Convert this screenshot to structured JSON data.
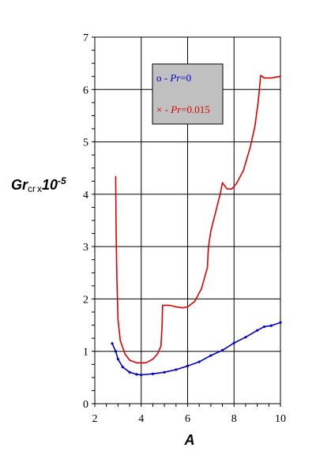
{
  "chart_data": {
    "type": "line",
    "xlabel": "A",
    "ylabel": {
      "main": "Gr",
      "sub": "cr",
      "times": "x",
      "base": "10",
      "exp": "-5"
    },
    "xlim": [
      2,
      10
    ],
    "ylim": [
      0,
      7
    ],
    "xticks": [
      "2",
      "4",
      "6",
      "8",
      "10"
    ],
    "yticks": [
      "0",
      "1",
      "2",
      "3",
      "4",
      "5",
      "6",
      "7"
    ],
    "grid": true,
    "legend": {
      "placement": "top-center",
      "background": "#c0c0c0",
      "entries": [
        {
          "marker": "o",
          "dash": " - ",
          "var": "Pr",
          "val": "=0",
          "color": "#0000cc"
        },
        {
          "marker": "×",
          "dash": " - ",
          "var": "Pr",
          "val": "=0.015",
          "color": "#dd0000"
        }
      ]
    },
    "series": [
      {
        "color": "#0000cc",
        "markers": true,
        "points": [
          [
            2.75,
            1.15
          ],
          [
            2.9,
            1.0
          ],
          [
            3.0,
            0.85
          ],
          [
            3.2,
            0.7
          ],
          [
            3.5,
            0.6
          ],
          [
            3.8,
            0.56
          ],
          [
            4.0,
            0.55
          ],
          [
            4.5,
            0.57
          ],
          [
            5.0,
            0.6
          ],
          [
            5.5,
            0.65
          ],
          [
            6.0,
            0.72
          ],
          [
            6.5,
            0.8
          ],
          [
            7.0,
            0.92
          ],
          [
            7.5,
            1.02
          ],
          [
            8.0,
            1.16
          ],
          [
            8.5,
            1.27
          ],
          [
            9.0,
            1.4
          ],
          [
            9.3,
            1.47
          ],
          [
            9.6,
            1.49
          ],
          [
            10.0,
            1.55
          ]
        ]
      },
      {
        "color": "#dd0000",
        "markers": false,
        "points": [
          [
            2.9,
            4.35
          ],
          [
            2.92,
            3.3
          ],
          [
            2.95,
            2.4
          ],
          [
            3.0,
            1.6
          ],
          [
            3.1,
            1.2
          ],
          [
            3.3,
            0.95
          ],
          [
            3.5,
            0.83
          ],
          [
            3.8,
            0.78
          ],
          [
            4.2,
            0.78
          ],
          [
            4.5,
            0.85
          ],
          [
            4.7,
            0.95
          ],
          [
            4.85,
            1.1
          ],
          [
            4.9,
            1.5
          ],
          [
            4.92,
            1.88
          ],
          [
            5.2,
            1.88
          ],
          [
            5.5,
            1.85
          ],
          [
            5.8,
            1.83
          ],
          [
            6.0,
            1.85
          ],
          [
            6.3,
            1.95
          ],
          [
            6.6,
            2.2
          ],
          [
            6.85,
            2.6
          ],
          [
            6.9,
            3.0
          ],
          [
            7.0,
            3.3
          ],
          [
            7.2,
            3.65
          ],
          [
            7.4,
            4.0
          ],
          [
            7.5,
            4.22
          ],
          [
            7.7,
            4.1
          ],
          [
            7.9,
            4.1
          ],
          [
            8.1,
            4.2
          ],
          [
            8.4,
            4.45
          ],
          [
            8.7,
            4.9
          ],
          [
            8.9,
            5.3
          ],
          [
            9.05,
            5.8
          ],
          [
            9.15,
            6.27
          ],
          [
            9.3,
            6.22
          ],
          [
            9.6,
            6.22
          ],
          [
            10.0,
            6.25
          ]
        ]
      }
    ]
  }
}
